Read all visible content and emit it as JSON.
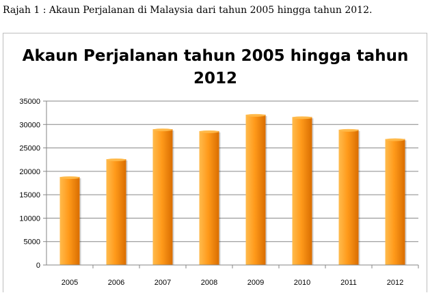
{
  "caption": "Rajah 1 : Akaun Perjalanan di Malaysia dari tahun 2005 hingga tahun 2012.",
  "colors": {
    "bar_light": "#ffbb4d",
    "bar_mid": "#ff9a1a",
    "bar_dark": "#d96d00",
    "grid": "#868686",
    "axis": "#868686"
  },
  "chart_data": {
    "type": "bar",
    "title_lines": [
      "Akaun Perjalanan tahun 2005 hingga tahun",
      "2012"
    ],
    "categories": [
      "2005",
      "2006",
      "2007",
      "2008",
      "2009",
      "2010",
      "2011",
      "2012"
    ],
    "values": [
      18800,
      22600,
      29000,
      28600,
      32100,
      31600,
      28900,
      26900
    ],
    "ylim": [
      0,
      35000
    ],
    "yticks": [
      0,
      5000,
      10000,
      15000,
      20000,
      25000,
      30000,
      35000
    ],
    "grid": true,
    "legend": "none"
  }
}
